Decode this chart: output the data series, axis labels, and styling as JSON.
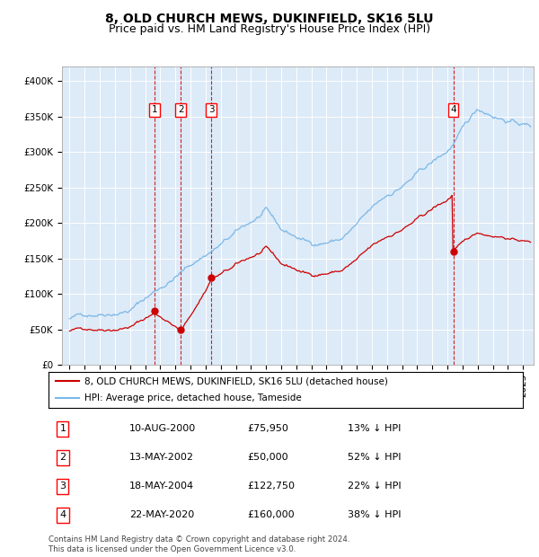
{
  "title": "8, OLD CHURCH MEWS, DUKINFIELD, SK16 5LU",
  "subtitle": "Price paid vs. HM Land Registry's House Price Index (HPI)",
  "ylim": [
    0,
    420000
  ],
  "yticks": [
    0,
    50000,
    100000,
    150000,
    200000,
    250000,
    300000,
    350000,
    400000
  ],
  "ytick_labels": [
    "£0",
    "£50K",
    "£100K",
    "£150K",
    "£200K",
    "£250K",
    "£300K",
    "£350K",
    "£400K"
  ],
  "hpi_color": "#7ab8e8",
  "price_color": "#cc0000",
  "background_color": "#ddeaf7",
  "sale_dates": [
    2000.608,
    2002.367,
    2004.378,
    2020.386
  ],
  "sale_prices": [
    75950,
    50000,
    122750,
    160000
  ],
  "sale_labels": [
    "1",
    "2",
    "3",
    "4"
  ],
  "vline_color": "#cc0000",
  "legend_house_label": "8, OLD CHURCH MEWS, DUKINFIELD, SK16 5LU (detached house)",
  "legend_hpi_label": "HPI: Average price, detached house, Tameside",
  "table_data": [
    [
      "1",
      "10-AUG-2000",
      "£75,950",
      "13% ↓ HPI"
    ],
    [
      "2",
      "13-MAY-2002",
      "£50,000",
      "52% ↓ HPI"
    ],
    [
      "3",
      "18-MAY-2004",
      "£122,750",
      "22% ↓ HPI"
    ],
    [
      "4",
      "22-MAY-2020",
      "£160,000",
      "38% ↓ HPI"
    ]
  ],
  "footer": "Contains HM Land Registry data © Crown copyright and database right 2024.\nThis data is licensed under the Open Government Licence v3.0.",
  "title_fontsize": 10,
  "subtitle_fontsize": 9,
  "tick_fontsize": 7.5,
  "x_start": 1995,
  "x_end": 2025,
  "xlim_left": 1994.5,
  "xlim_right": 2025.7
}
